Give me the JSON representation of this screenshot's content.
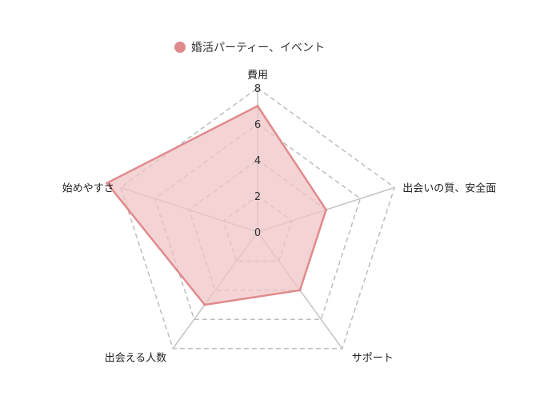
{
  "chart_data": {
    "type": "radar",
    "axes": [
      "費用",
      "出会いの質、安全面",
      "サポート",
      "出会える人数",
      "始めやすさ"
    ],
    "rmax": 8,
    "rticks": [
      0,
      2,
      4,
      6,
      8
    ],
    "grid": "dashed",
    "legend_position": "top",
    "series": [
      {
        "name": "婚活パーティー、イベント",
        "values": [
          7,
          4,
          4,
          5,
          8.8
        ],
        "color": "#e08a8c",
        "fill": "#f0c4c6"
      }
    ]
  }
}
